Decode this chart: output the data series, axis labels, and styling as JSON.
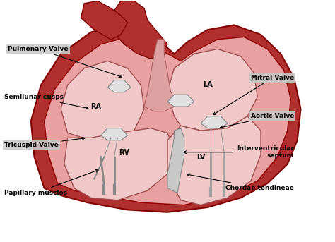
{
  "bg_color": "#ffffff",
  "heart_outer_color": "#b03030",
  "heart_inner_color": "#e8a0a0",
  "heart_light_color": "#f0c8c8",
  "chamber_color": "#f5dada",
  "vessel_color": "#c04040",
  "septum_color": "#d0d0d0",
  "label_bg": "#c8c8c8",
  "label_bg2": "#b8b8b8",
  "figsize": [
    4.74,
    3.43
  ],
  "dpi": 100,
  "labels": {
    "Pulmonary Valve": [
      0.13,
      0.72,
      0.295,
      0.62,
      "left"
    ],
    "Semilunar cusps": [
      0.03,
      0.56,
      0.22,
      0.5,
      "left"
    ],
    "Tricuspid Valve": [
      0.03,
      0.38,
      0.175,
      0.385,
      "left"
    ],
    "Papillary muscles": [
      0.03,
      0.18,
      0.215,
      0.25,
      "left"
    ],
    "LA": [
      0.53,
      0.62,
      0.53,
      0.62,
      "center"
    ],
    "RA": [
      0.285,
      0.52,
      0.285,
      0.52,
      "center"
    ],
    "RV": [
      0.37,
      0.4,
      0.37,
      0.4,
      "center"
    ],
    "LV": [
      0.48,
      0.4,
      0.48,
      0.4,
      "center"
    ],
    "Mitral Valve": [
      0.88,
      0.64,
      0.62,
      0.595,
      "right"
    ],
    "Aortic Valve": [
      0.88,
      0.485,
      0.68,
      0.47,
      "right"
    ],
    "Interventricular\nseptum": [
      0.88,
      0.36,
      0.625,
      0.38,
      "right"
    ],
    "Chordae tendineae": [
      0.85,
      0.24,
      0.565,
      0.3,
      "right"
    ]
  }
}
